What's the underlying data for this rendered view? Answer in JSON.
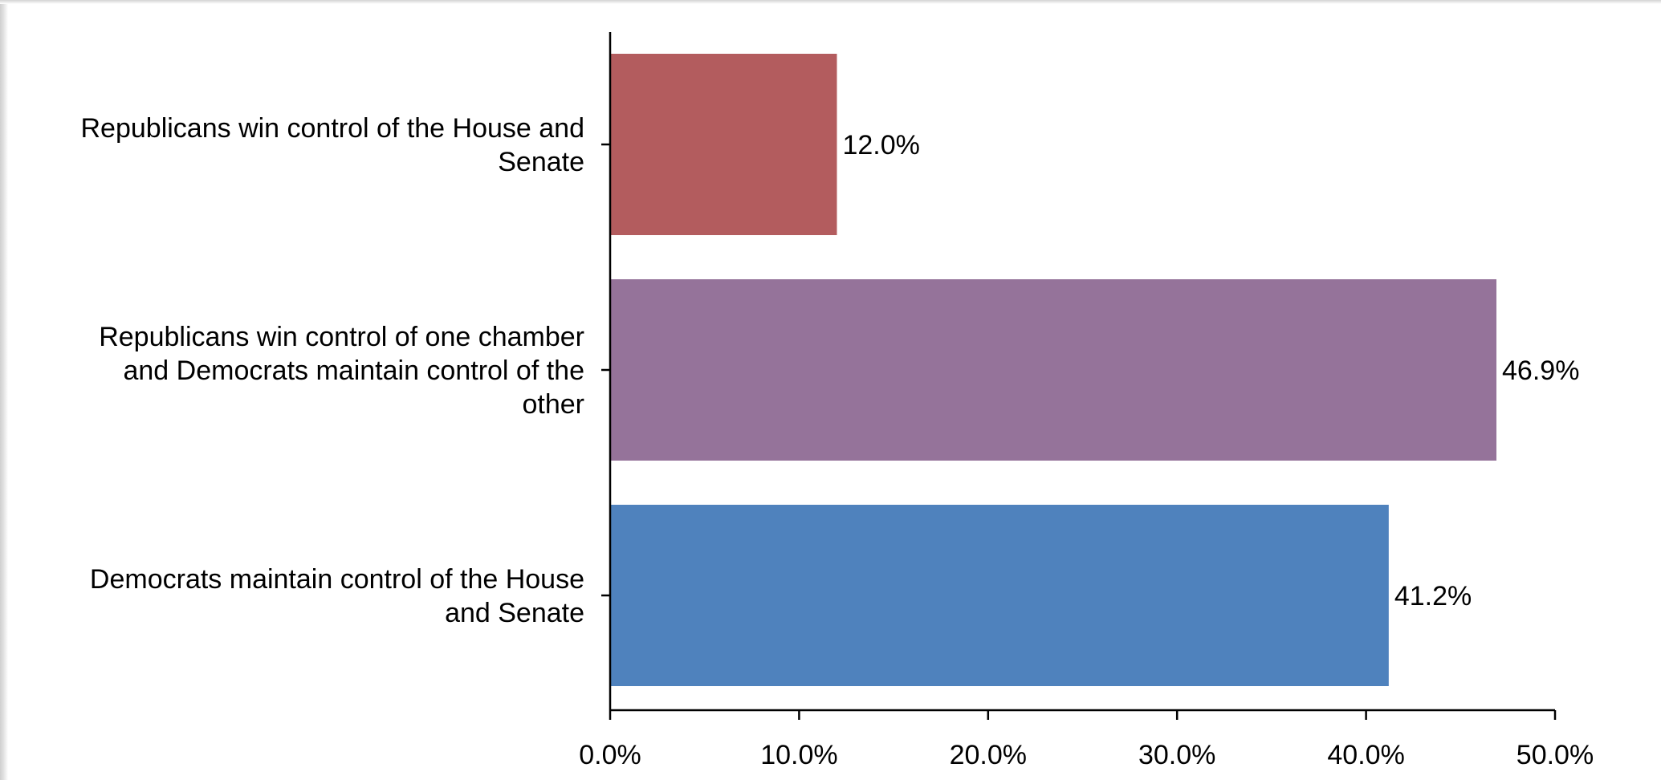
{
  "chart_data": {
    "type": "bar",
    "orientation": "horizontal",
    "categories": [
      [
        "Republicans win control of the House and",
        "Senate"
      ],
      [
        "Republicans win control of one chamber",
        "and Democrats maintain control of the",
        "other"
      ],
      [
        "Democrats maintain control of the House",
        "and Senate"
      ]
    ],
    "values": [
      12.0,
      46.9,
      41.2
    ],
    "data_labels": [
      "12.0%",
      "46.9%",
      "41.2%"
    ],
    "colors": [
      "#b35c5e",
      "#95739a",
      "#4f82bd"
    ],
    "xlim": [
      0,
      50
    ],
    "xticks": [
      0,
      10,
      20,
      30,
      40,
      50
    ],
    "xtick_labels": [
      "0.0%",
      "10.0%",
      "20.0%",
      "30.0%",
      "40.0%",
      "50.0%"
    ],
    "title": "",
    "xlabel": "",
    "ylabel": "",
    "grid": false,
    "legend": "none"
  }
}
